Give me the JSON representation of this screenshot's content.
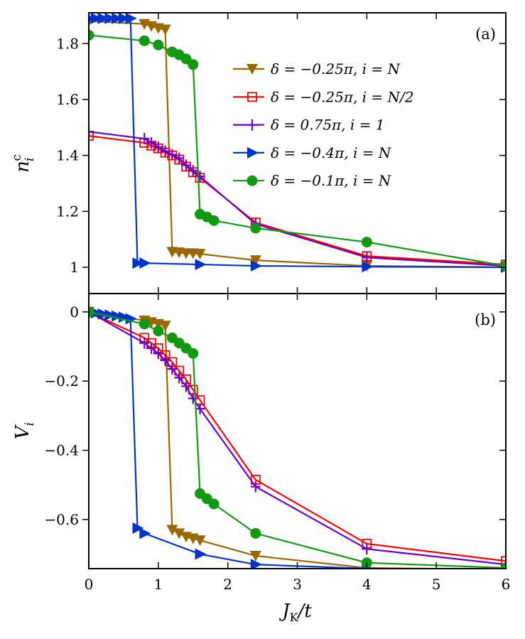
{
  "chart_data": [
    {
      "type": "line",
      "panel_label": "(a)",
      "ylabel": "n_i^c",
      "ylabel_main": "n",
      "ylabel_sub": "i",
      "ylabel_sup": "c",
      "xlim": [
        0,
        6
      ],
      "ylim": [
        0.906,
        1.91
      ],
      "yticks": [
        1,
        1.2,
        1.4,
        1.6,
        1.8
      ],
      "ytick_labels": [
        "1",
        "1.2",
        "1.4",
        "1.6",
        "1.8"
      ],
      "grid": false,
      "legend_position": "top-right",
      "series": [
        {
          "name": "δ = −0.25π,  i = N",
          "color": "#9a6700",
          "marker": "triangle-down",
          "x": [
            0,
            0.8,
            0.9,
            1.0,
            1.1,
            1.2,
            1.3,
            1.4,
            1.5,
            1.6,
            2.4,
            4,
            6
          ],
          "y": [
            1.88,
            1.87,
            1.862,
            1.855,
            1.85,
            1.055,
            1.053,
            1.05,
            1.05,
            1.048,
            1.025,
            1.005,
            1.0
          ]
        },
        {
          "name": "δ = −0.25π,  i = N/2",
          "color": "#ff0000",
          "marker": "square-open",
          "x": [
            0,
            0.8,
            0.9,
            1.0,
            1.1,
            1.2,
            1.3,
            1.4,
            1.5,
            1.6,
            2.4,
            4,
            6
          ],
          "y": [
            1.47,
            1.445,
            1.435,
            1.425,
            1.41,
            1.4,
            1.385,
            1.36,
            1.34,
            1.32,
            1.16,
            1.04,
            1.01
          ]
        },
        {
          "name": "δ = 0.75π,  i = 1",
          "color": "#6a00cc",
          "marker": "plus",
          "x": [
            0,
            0.8,
            0.9,
            1.0,
            1.1,
            1.2,
            1.3,
            1.4,
            1.5,
            1.6,
            2.4,
            4,
            6
          ],
          "y": [
            1.485,
            1.46,
            1.445,
            1.43,
            1.415,
            1.403,
            1.39,
            1.365,
            1.345,
            1.325,
            1.155,
            1.035,
            1.005
          ]
        },
        {
          "name": "δ = −0.4π,  i = N",
          "color": "#0033cc",
          "marker": "triangle-right",
          "x": [
            0,
            0.1,
            0.2,
            0.3,
            0.4,
            0.5,
            0.6,
            0.7,
            0.8,
            1.6,
            2.4,
            4,
            6
          ],
          "y": [
            1.89,
            1.89,
            1.89,
            1.89,
            1.89,
            1.89,
            1.89,
            1.015,
            1.015,
            1.01,
            1.005,
            1.002,
            1.0
          ]
        },
        {
          "name": "δ = −0.1π,  i = N",
          "color": "#119911",
          "marker": "circle",
          "x": [
            0,
            0.8,
            1.0,
            1.2,
            1.3,
            1.4,
            1.5,
            1.6,
            1.7,
            1.8,
            2.4,
            4,
            6
          ],
          "y": [
            1.83,
            1.81,
            1.795,
            1.77,
            1.76,
            1.745,
            1.725,
            1.19,
            1.18,
            1.167,
            1.14,
            1.09,
            1.005
          ]
        }
      ]
    },
    {
      "type": "line",
      "panel_label": "(b)",
      "ylabel": "V_i",
      "ylabel_main": "V",
      "ylabel_sub": "i",
      "xlabel": "J_K/t",
      "xlabel_main": "J",
      "xlabel_sub": "K",
      "xlabel_rest": "/t",
      "xlim": [
        0,
        6
      ],
      "ylim": [
        -0.742,
        0.053
      ],
      "xticks": [
        0,
        1,
        2,
        3,
        4,
        5,
        6
      ],
      "xtick_labels": [
        "0",
        "1",
        "2",
        "3",
        "4",
        "5",
        "6"
      ],
      "yticks": [
        0,
        -0.2,
        -0.4,
        -0.6
      ],
      "ytick_labels": [
        "0",
        "−0.2",
        "−0.4",
        "−0.6"
      ],
      "grid": false,
      "series": [
        {
          "name": "δ = −0.25π,  i = N",
          "color": "#9a6700",
          "marker": "triangle-down",
          "x": [
            0,
            0.8,
            0.9,
            1.0,
            1.1,
            1.2,
            1.3,
            1.4,
            1.5,
            1.6,
            2.4,
            4,
            6
          ],
          "y": [
            0,
            -0.025,
            -0.03,
            -0.035,
            -0.04,
            -0.63,
            -0.64,
            -0.65,
            -0.655,
            -0.66,
            -0.705,
            -0.74,
            -0.745
          ]
        },
        {
          "name": "δ = −0.25π,  i = N/2",
          "color": "#ff0000",
          "marker": "square-open",
          "x": [
            0,
            0.8,
            0.9,
            1.0,
            1.1,
            1.2,
            1.3,
            1.4,
            1.5,
            1.6,
            2.4,
            4,
            6
          ],
          "y": [
            0,
            -0.075,
            -0.09,
            -0.105,
            -0.125,
            -0.145,
            -0.17,
            -0.195,
            -0.225,
            -0.255,
            -0.485,
            -0.67,
            -0.72
          ]
        },
        {
          "name": "δ = 0.75π,  i = 1",
          "color": "#6a00cc",
          "marker": "plus",
          "x": [
            0,
            0.8,
            0.9,
            1.0,
            1.1,
            1.2,
            1.3,
            1.4,
            1.5,
            1.6,
            2.4,
            4,
            6
          ],
          "y": [
            0,
            -0.09,
            -0.105,
            -0.12,
            -0.14,
            -0.165,
            -0.19,
            -0.215,
            -0.25,
            -0.28,
            -0.505,
            -0.685,
            -0.73
          ]
        },
        {
          "name": "δ = −0.4π,  i = N",
          "color": "#0033cc",
          "marker": "triangle-right",
          "x": [
            0,
            0.1,
            0.2,
            0.3,
            0.4,
            0.5,
            0.6,
            0.7,
            0.8,
            1.6,
            2.4,
            4,
            6
          ],
          "y": [
            0,
            -0.003,
            -0.006,
            -0.009,
            -0.012,
            -0.015,
            -0.02,
            -0.625,
            -0.64,
            -0.7,
            -0.73,
            -0.742,
            -0.745
          ]
        },
        {
          "name": "δ = −0.1π,  i = N",
          "color": "#119911",
          "marker": "circle",
          "x": [
            0,
            0.8,
            1.0,
            1.2,
            1.3,
            1.4,
            1.5,
            1.6,
            1.7,
            1.8,
            2.4,
            4,
            6
          ],
          "y": [
            0,
            -0.035,
            -0.055,
            -0.075,
            -0.09,
            -0.105,
            -0.12,
            -0.525,
            -0.54,
            -0.555,
            -0.64,
            -0.725,
            -0.74
          ]
        }
      ]
    }
  ]
}
